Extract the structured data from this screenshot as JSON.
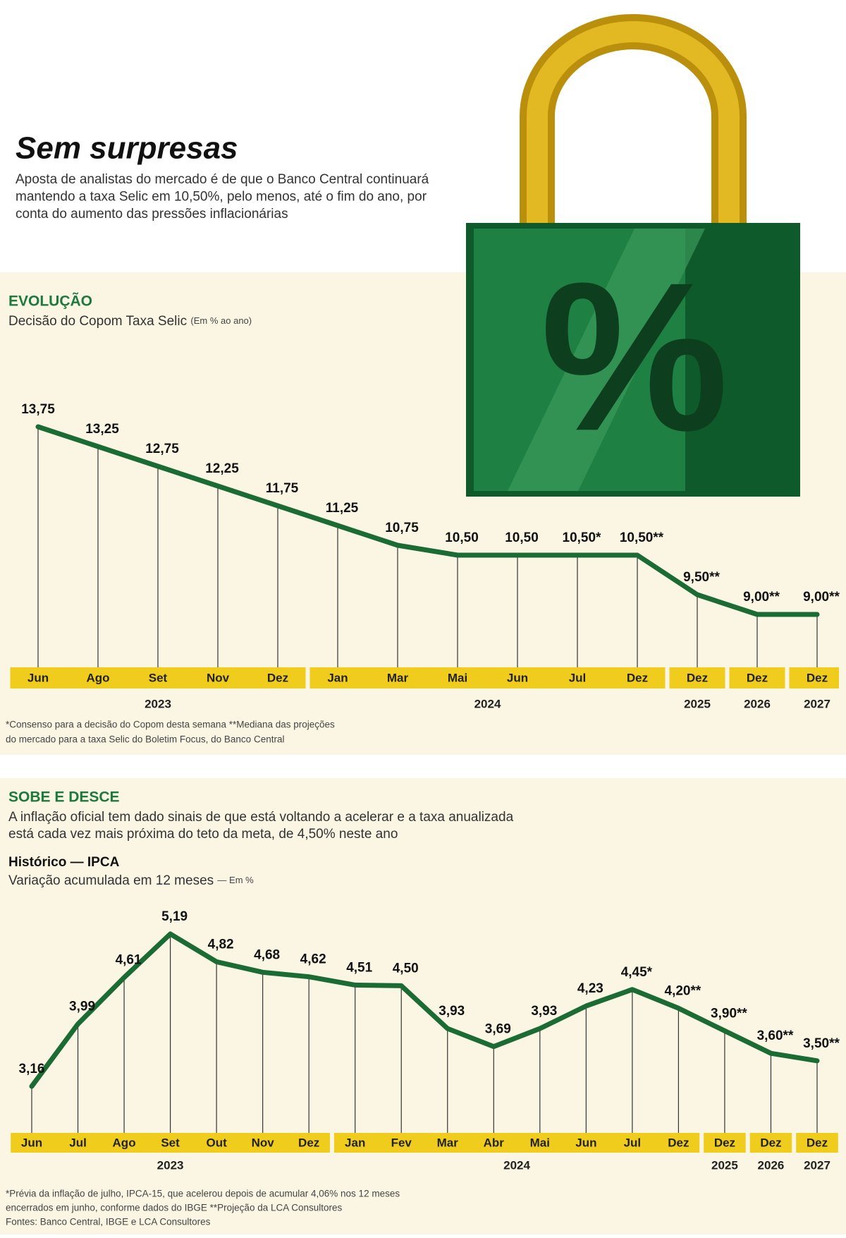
{
  "header": {
    "title": "Sem surpresas",
    "subtitle": [
      "Aposta de analistas do mercado é de que o Banco Central continuará",
      "mantendo a taxa Selic em 10,50%, pelo menos, até o fim do ano, por",
      "conta do aumento das pressões inflacionárias"
    ],
    "lock_symbol": "%"
  },
  "chart_data": [
    {
      "type": "line",
      "section": "EVOLUÇÃO",
      "title": "Decisão do Copom Taxa Selic",
      "unit": "(Em % ao ano)",
      "categories": [
        "Jun",
        "Ago",
        "Set",
        "Nov",
        "Dez",
        "Jan",
        "Mar",
        "Mai",
        "Jun",
        "Jul",
        "Dez",
        "Dez",
        "Dez",
        "Dez"
      ],
      "years": [
        "2023",
        "2023",
        "2023",
        "2023",
        "2023",
        "2024",
        "2024",
        "2024",
        "2024",
        "2024",
        "2024",
        "2025",
        "2026",
        "2027"
      ],
      "series": [
        {
          "color": "#1b6b35",
          "values": [
            13.75,
            13.25,
            12.75,
            12.25,
            11.75,
            11.25,
            10.75,
            10.5,
            10.5,
            10.5,
            10.5,
            9.5,
            9.0,
            9.0
          ],
          "value_labels": [
            "13,75",
            "13,25",
            "12,75",
            "12,25",
            "11,75",
            "11,25",
            "10,75",
            "10,50",
            "10,50",
            "10,50*",
            "10,50**",
            "9,50**",
            "9,00**",
            "9,00**"
          ]
        }
      ],
      "footnote": [
        "*Consenso para a decisão do Copom desta semana **Mediana das projeções",
        "do mercado para a taxa Selic do Boletim Focus, do Banco Central"
      ]
    },
    {
      "type": "line",
      "section": "SOBE E DESCE",
      "description": [
        "A inflação oficial tem dado sinais de que está voltando a acelerar e a taxa anualizada",
        "está cada vez mais próxima do teto da meta, de 4,50% neste ano"
      ],
      "title": "Histórico — IPCA",
      "subtitle": "Variação acumulada em 12 meses",
      "unit": "— Em %",
      "categories": [
        "Jun",
        "Jul",
        "Ago",
        "Set",
        "Out",
        "Nov",
        "Dez",
        "Jan",
        "Fev",
        "Mar",
        "Abr",
        "Mai",
        "Jun",
        "Jul",
        "Dez",
        "Dez",
        "Dez",
        "Dez"
      ],
      "years": [
        "2023",
        "2023",
        "2023",
        "2023",
        "2023",
        "2023",
        "2023",
        "2024",
        "2024",
        "2024",
        "2024",
        "2024",
        "2024",
        "2024",
        "2024",
        "2025",
        "2026",
        "2027"
      ],
      "series": [
        {
          "color": "#1b6b35",
          "values": [
            3.16,
            3.99,
            4.61,
            5.19,
            4.82,
            4.68,
            4.62,
            4.51,
            4.5,
            3.93,
            3.69,
            3.93,
            4.23,
            4.45,
            4.2,
            3.9,
            3.6,
            3.5
          ],
          "value_labels": [
            "3,16",
            "3,99",
            "4,61",
            "5,19",
            "4,82",
            "4,68",
            "4,62",
            "4,51",
            "4,50",
            "3,93",
            "3,69",
            "3,93",
            "4,23",
            "4,45*",
            "4,20**",
            "3,90**",
            "3,60**",
            "3,50**"
          ]
        }
      ],
      "footnote": [
        "*Prévia da inflação de julho, IPCA-15, que acelerou depois de acumular 4,06% nos 12 meses",
        "encerrados em junho, conforme dados do IBGE  **Projeção da LCA Consultores",
        "Fontes: Banco Central, IBGE e LCA Consultores"
      ]
    }
  ]
}
